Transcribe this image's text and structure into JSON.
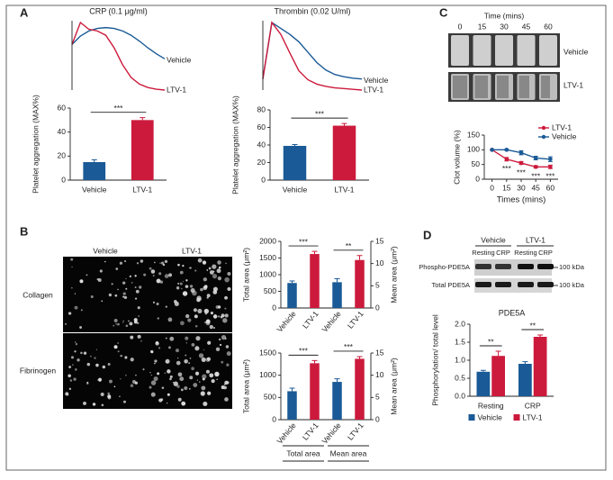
{
  "panel_labels": [
    "A",
    "B",
    "C",
    "D"
  ],
  "clot_images": {
    "title": "Time (mins)",
    "times": [
      0,
      15,
      30,
      45,
      60
    ],
    "rows": [
      "Vehicle",
      "LTV-1"
    ]
  },
  "micrographs": {
    "columns": [
      "Vehicle",
      "LTV-1"
    ],
    "rows": [
      "Collagen",
      "Fibrinogen"
    ]
  },
  "blot": {
    "groups": [
      "Vehicle",
      "LTV-1"
    ],
    "lanes": [
      "Resting",
      "CRP",
      "Resting",
      "CRP"
    ],
    "rows": [
      "Phospho-PDE5A",
      "Total PDE5A"
    ],
    "markers": [
      "100 kDa",
      "100 kDa"
    ]
  },
  "chart_data": [
    {
      "type": "trace",
      "title": "CRP (0.1 μg/ml)",
      "series": [
        {
          "name": "Vehicle",
          "color": "#1a5a96",
          "values": [
            60,
            70,
            76,
            79,
            80,
            79,
            76,
            71,
            64,
            56,
            49,
            43
          ]
        },
        {
          "name": "LTV-1",
          "color": "#cc1a3c",
          "values": [
            60,
            86,
            78,
            76,
            71,
            56,
            36,
            21,
            13,
            9,
            7,
            6
          ]
        }
      ]
    },
    {
      "type": "bar",
      "ylabel": "Platelet aggregation (MAX%)",
      "categories": [
        "Vehicle",
        "LTV-1"
      ],
      "values": [
        15,
        50
      ],
      "errors": [
        2,
        2
      ],
      "colors": [
        "#1a5a96",
        "#cc1a3c"
      ],
      "ylim": [
        0,
        60
      ],
      "yticks": [
        0,
        20,
        40,
        60
      ],
      "annotations": [
        "***"
      ]
    },
    {
      "type": "trace",
      "title": "Thrombin (0.02 U/ml)",
      "series": [
        {
          "name": "Vehicle",
          "color": "#1a5a96",
          "values": [
            20,
            96,
            88,
            80,
            70,
            56,
            42,
            32,
            26,
            23,
            21,
            20
          ]
        },
        {
          "name": "LTV-1",
          "color": "#cc1a3c",
          "values": [
            20,
            96,
            80,
            55,
            31,
            19,
            13,
            10,
            8,
            7,
            6,
            5
          ]
        }
      ]
    },
    {
      "type": "bar",
      "ylabel": "Platelet aggregation (MAX%)",
      "categories": [
        "Vehicle",
        "LTV-1"
      ],
      "values": [
        39,
        62
      ],
      "errors": [
        1.5,
        2.5
      ],
      "colors": [
        "#1a5a96",
        "#cc1a3c"
      ],
      "ylim": [
        0,
        80
      ],
      "yticks": [
        0,
        20,
        40,
        60,
        80
      ],
      "annotations": [
        "***"
      ]
    },
    {
      "type": "line",
      "xlabel": "Times (mins)",
      "ylabel": "Clot volume (%)",
      "x": [
        0,
        15,
        30,
        45,
        60
      ],
      "series": [
        {
          "name": "LTV-1",
          "color": "#cc1a3c",
          "values": [
            100,
            68,
            55,
            42,
            42
          ],
          "errors": [
            0,
            6,
            5,
            4,
            6
          ]
        },
        {
          "name": "Vehicle",
          "color": "#1a5a96",
          "values": [
            100,
            100,
            90,
            72,
            68
          ],
          "errors": [
            0,
            2,
            7,
            6,
            8
          ]
        }
      ],
      "xlim": [
        -8,
        68
      ],
      "xticks": [
        0,
        15,
        30,
        45,
        60
      ],
      "ylim": [
        0,
        150
      ],
      "yticks": [
        0,
        50,
        100,
        150
      ],
      "legend": "upper right",
      "annotations": [
        "***",
        "***",
        "***",
        "***"
      ]
    },
    {
      "type": "bar",
      "ylabel": "Total area (μm²)",
      "y2label": "Mean area (μm²)",
      "categories": [
        "Vehicle",
        "LTV-1",
        "Vehicle",
        "LTV-1"
      ],
      "colors": [
        "#1a5a96",
        "#cc1a3c",
        "#1a5a96",
        "#cc1a3c"
      ],
      "series": [
        {
          "values": [
            750,
            1620,
            null,
            null
          ],
          "errors": [
            60,
            80,
            null,
            null
          ]
        },
        {
          "axis": "y2",
          "values": [
            null,
            null,
            5.8,
            10.8
          ],
          "errors": [
            null,
            null,
            0.8,
            1.0
          ]
        }
      ],
      "ylim": [
        0,
        2000
      ],
      "yticks": [
        0,
        500,
        1000,
        1500,
        2000
      ],
      "y2lim": [
        0,
        15
      ],
      "y2ticks": [
        0,
        5,
        10,
        15
      ],
      "annotations": [
        "***",
        "**"
      ]
    },
    {
      "type": "bar",
      "ylabel": "Total area (μm²)",
      "y2label": "Mean area (μm²)",
      "categories": [
        "Vehicle",
        "LTV-1",
        "Vehicle",
        "LTV-1"
      ],
      "colors": [
        "#1a5a96",
        "#cc1a3c",
        "#1a5a96",
        "#cc1a3c"
      ],
      "series": [
        {
          "name": "Total area",
          "values": [
            640,
            1270,
            null,
            null
          ],
          "errors": [
            70,
            60,
            null,
            null
          ]
        },
        {
          "name": "Mean area",
          "axis": "y2",
          "values": [
            null,
            null,
            8.5,
            13.7
          ],
          "errors": [
            null,
            null,
            0.7,
            0.5
          ]
        }
      ],
      "ylim": [
        0,
        1500
      ],
      "yticks": [
        0,
        500,
        1000,
        1500
      ],
      "y2lim": [
        0,
        15
      ],
      "y2ticks": [
        0,
        5,
        10,
        15
      ],
      "annotations": [
        "***",
        "***"
      ]
    },
    {
      "type": "bar",
      "title": "PDE5A",
      "ylabel": "Phosphorylation/ total level",
      "categories": [
        "Resting",
        "CRP"
      ],
      "series": [
        {
          "name": "Vehicle",
          "color": "#1a5a96",
          "values": [
            0.68,
            0.9
          ],
          "errors": [
            0.04,
            0.06
          ]
        },
        {
          "name": "LTV-1",
          "color": "#cc1a3c",
          "values": [
            1.12,
            1.65
          ],
          "errors": [
            0.13,
            0.05
          ]
        }
      ],
      "ylim": [
        0,
        2
      ],
      "yticks": [
        {
          "value": 0,
          "label": "0.0"
        },
        0.5,
        {
          "value": 1,
          "label": "1.0"
        },
        1.5,
        {
          "value": 2,
          "label": "2.0"
        }
      ],
      "annotations": [
        "**",
        "**"
      ],
      "legend": "bottom"
    }
  ]
}
